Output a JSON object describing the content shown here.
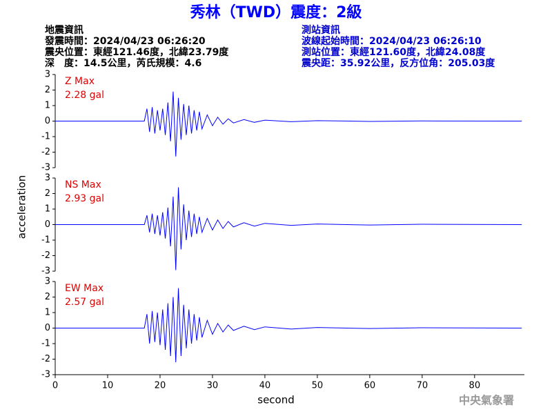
{
  "header": {
    "title": "秀林（TWD）震度：2級",
    "left": [
      "地震資訊",
      "發震時間：2024/04/23 06:26:20",
      "震央位置：東經121.46度，北緯23.79度",
      "深　度：14.5公里，芮氏規模：4.6"
    ],
    "right": [
      "測站資訊",
      "波線起始時間：2024/04/23 06:26:10",
      "測站位置：東經121.60度，北緯24.08度",
      "震央距：35.92公里，反方位角：205.03度"
    ]
  },
  "footer": "中央氣象署",
  "chart_data": [
    {
      "type": "line",
      "annotation": "Z Max",
      "max_label": "2.28 gal",
      "color": "#0000ff",
      "xlim": [
        0,
        89.5
      ],
      "ylim": [
        -3,
        3
      ],
      "yticks": [
        -3,
        -2,
        -1,
        0,
        1,
        2,
        3
      ],
      "x": [
        0,
        17,
        17.5,
        18,
        18.5,
        19,
        19.5,
        20,
        20.5,
        21,
        21.5,
        22,
        22.5,
        23,
        23.5,
        24,
        24.5,
        25,
        25.5,
        26,
        26.5,
        27,
        27.5,
        28,
        29,
        30,
        31,
        32,
        33,
        34,
        36,
        38,
        40,
        45,
        50,
        60,
        70,
        89
      ],
      "values": [
        0,
        0,
        0.8,
        -0.7,
        0.9,
        -0.8,
        0.7,
        -0.6,
        0.8,
        -0.9,
        1.2,
        -1.3,
        1.9,
        -2.28,
        1.5,
        -1.2,
        1.1,
        -0.9,
        1.0,
        -0.8,
        0.7,
        -0.6,
        0.6,
        -0.5,
        0.4,
        -0.3,
        0.25,
        -0.2,
        0.15,
        -0.12,
        0.1,
        -0.08,
        0.06,
        -0.04,
        0.03,
        -0.02,
        0.01,
        0
      ]
    },
    {
      "type": "line",
      "annotation": "NS Max",
      "max_label": "2.93 gal",
      "color": "#0000ff",
      "ylabel": "acceleration",
      "xlim": [
        0,
        89.5
      ],
      "ylim": [
        -3,
        3
      ],
      "yticks": [
        -3,
        -2,
        -1,
        0,
        1,
        2,
        3
      ],
      "x": [
        0,
        17,
        17.5,
        18,
        18.5,
        19,
        19.5,
        20,
        20.5,
        21,
        21.5,
        22,
        22.5,
        23,
        23.5,
        24,
        24.5,
        25,
        25.5,
        26,
        26.5,
        27,
        27.5,
        28,
        29,
        30,
        31,
        32,
        33,
        34,
        36,
        38,
        40,
        45,
        50,
        60,
        70,
        89
      ],
      "values": [
        0,
        0,
        0.6,
        -0.5,
        0.7,
        -0.6,
        0.6,
        -0.7,
        0.8,
        -0.9,
        1.1,
        -1.4,
        1.8,
        -2.93,
        2.4,
        -1.6,
        1.3,
        -1.0,
        0.9,
        -0.8,
        0.7,
        -0.6,
        0.5,
        -0.5,
        0.4,
        -0.35,
        0.3,
        -0.25,
        0.2,
        -0.15,
        0.12,
        -0.1,
        0.08,
        -0.05,
        0.04,
        -0.03,
        0.02,
        0
      ]
    },
    {
      "type": "line",
      "annotation": "EW Max",
      "max_label": "2.57 gal",
      "color": "#0000ff",
      "xlabel": "second",
      "xlim": [
        0,
        89.5
      ],
      "ylim": [
        -3,
        3
      ],
      "yticks": [
        -3,
        -2,
        -1,
        0,
        1,
        2,
        3
      ],
      "xticks": [
        0,
        10,
        20,
        30,
        40,
        50,
        60,
        70,
        80
      ],
      "x": [
        0,
        17,
        17.5,
        18,
        18.5,
        19,
        19.5,
        20,
        20.5,
        21,
        21.5,
        22,
        22.5,
        23,
        23.5,
        24,
        24.5,
        25,
        25.5,
        26,
        26.5,
        27,
        27.5,
        28,
        29,
        30,
        31,
        32,
        33,
        34,
        36,
        38,
        40,
        45,
        50,
        60,
        70,
        89
      ],
      "values": [
        0,
        0,
        0.9,
        -1.0,
        1.1,
        -0.9,
        1.0,
        -1.1,
        1.2,
        -1.4,
        1.6,
        -1.8,
        2.0,
        -2.2,
        2.57,
        -1.8,
        1.5,
        -1.3,
        1.2,
        -1.0,
        0.9,
        -0.8,
        0.7,
        -0.6,
        0.5,
        -0.4,
        0.3,
        -0.25,
        0.2,
        -0.15,
        0.12,
        -0.1,
        0.08,
        -0.06,
        0.04,
        -0.03,
        0.02,
        0
      ]
    }
  ]
}
